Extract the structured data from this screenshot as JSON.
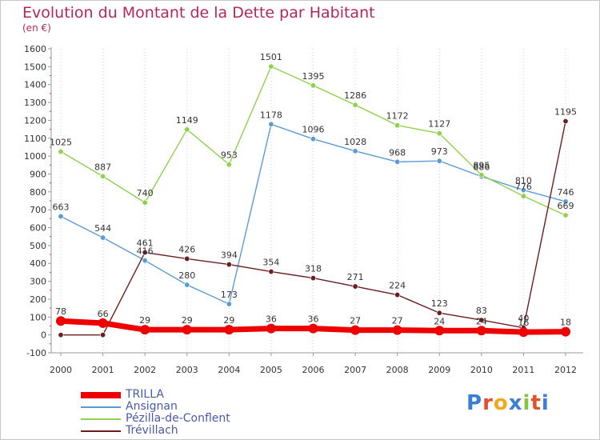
{
  "title": "Evolution du Montant de la Dette par Habitant",
  "subtitle": "(en €)",
  "logo_text": "Proxiti",
  "chart_data": {
    "type": "line",
    "title": "Evolution du Montant de la Dette par Habitant",
    "subtitle": "(en €)",
    "xlabel": "",
    "ylabel": "",
    "x": [
      "2000",
      "2001",
      "2002",
      "2003",
      "2004",
      "2005",
      "2006",
      "2007",
      "2008",
      "2009",
      "2010",
      "2011",
      "2012"
    ],
    "ylim": [
      -100,
      1600
    ],
    "yticks": [
      -100,
      0,
      100,
      200,
      300,
      400,
      500,
      600,
      700,
      800,
      900,
      1000,
      1100,
      1200,
      1300,
      1400,
      1500,
      1600
    ],
    "grid": "vertical dotted",
    "legend_position": "bottom-left",
    "series": [
      {
        "name": "TRILLA",
        "color": "#ee0000",
        "values": [
          78,
          66,
          29,
          29,
          29,
          36,
          36,
          27,
          27,
          24,
          24,
          16,
          18
        ],
        "labels": [
          "78",
          "66",
          "29",
          "29",
          "29",
          "36",
          "36",
          "27",
          "27",
          "24",
          "24",
          "16",
          "18"
        ]
      },
      {
        "name": "Ansignan",
        "color": "#5b9bd5",
        "values": [
          663,
          544,
          416,
          280,
          173,
          1178,
          1096,
          1028,
          968,
          973,
          886,
          810,
          746
        ],
        "labels": [
          "663",
          "544",
          "416",
          "280",
          "173",
          "1178",
          "1096",
          "1028",
          "968",
          "973",
          "886",
          "810",
          "746"
        ]
      },
      {
        "name": "Pézilla-de-Conflent",
        "color": "#8fd14f",
        "values": [
          1025,
          887,
          740,
          1149,
          953,
          1501,
          1395,
          1286,
          1172,
          1127,
          895,
          776,
          669
        ],
        "labels": [
          "1025",
          "887",
          "740",
          "1149",
          "953",
          "1501",
          "1395",
          "1286",
          "1172",
          "1127",
          "895",
          "776",
          "669"
        ]
      },
      {
        "name": "Trévillach",
        "color": "#6b1e22",
        "values": [
          0,
          0,
          461,
          426,
          394,
          354,
          318,
          271,
          224,
          123,
          83,
          40,
          1195
        ],
        "labels": [
          "",
          "",
          "461",
          "426",
          "394",
          "354",
          "318",
          "271",
          "224",
          "123",
          "83",
          "40",
          "1195"
        ]
      }
    ]
  }
}
